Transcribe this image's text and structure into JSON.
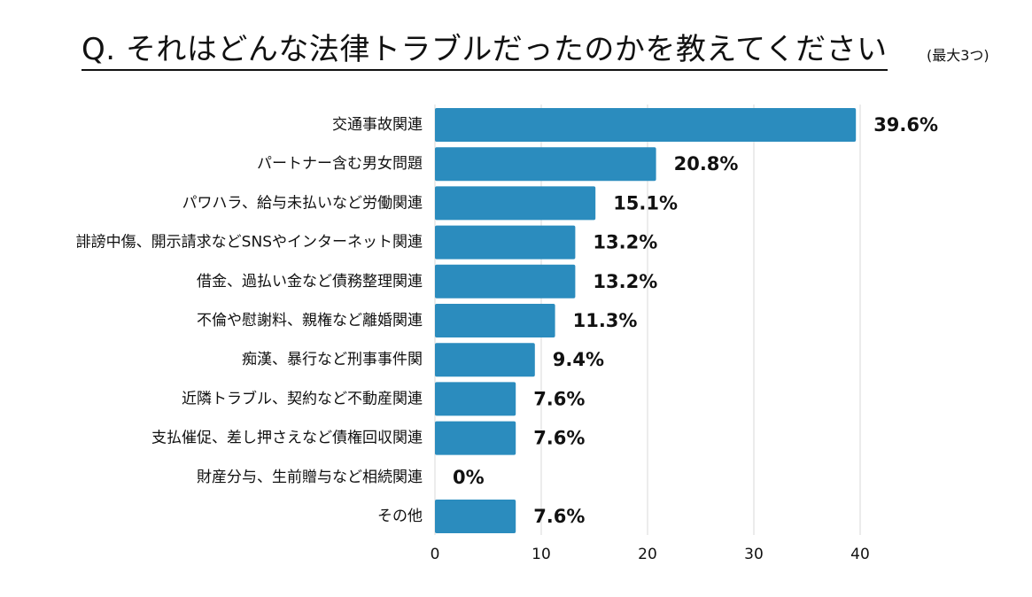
{
  "title": "Q. それはどんな法律トラブルだったのかを教えてください",
  "title_note": "(最大3つ)",
  "colors": {
    "bar": "#2b8cbe",
    "grid": "#d9d9d9",
    "text": "#111111"
  },
  "chart_data": {
    "type": "bar",
    "orientation": "horizontal",
    "title": "Q. それはどんな法律トラブルだったのかを教えてください",
    "subtitle": "(最大3つ)",
    "xlabel": "",
    "ylabel": "",
    "xlim": [
      0,
      40
    ],
    "x_ticks": [
      0,
      10,
      20,
      30,
      40
    ],
    "grid": true,
    "categories": [
      "交通事故関連",
      "パートナー含む男女問題",
      "パワハラ、給与未払いなど労働関連",
      "誹謗中傷、開示請求などSNSやインターネット関連",
      "借金、過払い金など債務整理関連",
      "不倫や慰謝料、親権など離婚関連",
      "痴漢、暴行など刑事事件関",
      "近隣トラブル、契約など不動産関連",
      "支払催促、差し押さえなど債権回収関連",
      "財産分与、生前贈与など相続関連",
      "その他"
    ],
    "values": [
      39.6,
      20.8,
      15.1,
      13.2,
      13.2,
      11.3,
      9.4,
      7.6,
      7.6,
      0,
      7.6
    ],
    "value_labels": [
      "39.6%",
      "20.8%",
      "15.1%",
      "13.2%",
      "13.2%",
      "11.3%",
      "9.4%",
      "7.6%",
      "7.6%",
      "0%",
      "7.6%"
    ]
  }
}
